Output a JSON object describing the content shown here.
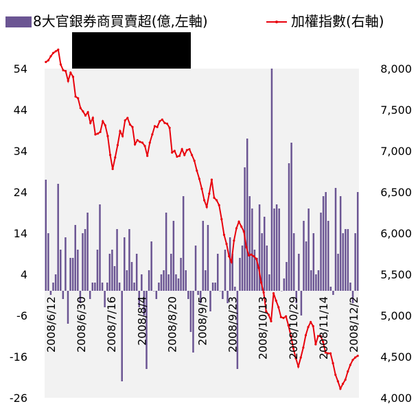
{
  "chart_data": {
    "type": "bar+line",
    "legend": [
      {
        "label": "8大官銀券商買賣超(億,左軸)",
        "kind": "bar",
        "color": "#6b5593"
      },
      {
        "label": "加權指數(右軸)",
        "kind": "line",
        "color": "#e8000b"
      }
    ],
    "left_axis": {
      "ticks": [
        "54",
        "44",
        "34",
        "24",
        "14",
        "4",
        "-6",
        "-16",
        "-26"
      ],
      "ylim": [
        -26,
        54
      ]
    },
    "right_axis": {
      "ticks": [
        "8,000",
        "7,500",
        "7,000",
        "6,500",
        "6,000",
        "5,500",
        "5,000",
        "4,500",
        "4,000"
      ],
      "ylim": [
        4000,
        8000
      ]
    },
    "x_labels": [
      "2008/6/12",
      "2008/6/30",
      "2008/7/16",
      "2008/8/4",
      "2008/8/20",
      "2008/9/5",
      "2008/9/23",
      "2008/10/13",
      "2008/10/29",
      "2008/11/14",
      "2008/12/2"
    ],
    "bar_values": [
      27,
      14,
      -1,
      2,
      4,
      26,
      10,
      -2,
      13,
      -8,
      8,
      8,
      16,
      10,
      -3,
      14,
      15,
      19,
      -2,
      2,
      2,
      10,
      21,
      2,
      -4,
      2,
      9,
      10,
      6,
      15,
      2,
      -22,
      13,
      5,
      15,
      7,
      2,
      9,
      -4,
      4,
      -6,
      -19,
      5,
      12,
      0,
      -2,
      2,
      4,
      5,
      19,
      4,
      9,
      17,
      4,
      3,
      8,
      23,
      5,
      -2,
      -10,
      -15,
      11,
      -1,
      -3,
      17,
      5,
      16,
      -5,
      2,
      2,
      9,
      0,
      -2,
      10,
      -3,
      13,
      9,
      1,
      -19,
      8,
      11,
      30,
      37,
      23,
      20,
      10,
      8,
      21,
      14,
      18,
      11,
      4,
      54,
      20,
      21,
      20,
      0,
      3,
      7,
      31,
      36,
      14,
      -3,
      9,
      -6,
      17,
      12,
      20,
      5,
      14,
      4,
      5,
      19,
      23,
      24,
      17,
      1,
      -1,
      25,
      9,
      23,
      14,
      15,
      15,
      2,
      -3,
      14,
      24
    ],
    "index_values": [
      8080,
      8100,
      8150,
      8190,
      8210,
      8230,
      8050,
      7980,
      7970,
      7850,
      7950,
      7900,
      7660,
      7640,
      7520,
      7480,
      7430,
      7470,
      7340,
      7400,
      7200,
      7210,
      7230,
      7360,
      7310,
      7180,
      6950,
      6780,
      6920,
      7070,
      7240,
      7180,
      7370,
      7400,
      7320,
      7290,
      7080,
      7130,
      7110,
      7100,
      7060,
      6940,
      7100,
      7200,
      7300,
      7290,
      7360,
      7380,
      7340,
      7330,
      7280,
      6980,
      7000,
      6930,
      6940,
      7020,
      6950,
      7010,
      7020,
      6950,
      6880,
      6760,
      6660,
      6540,
      6400,
      6320,
      6480,
      6650,
      6430,
      6400,
      6340,
      6170,
      5980,
      5870,
      5720,
      5650,
      5910,
      6060,
      6140,
      6080,
      6020,
      5830,
      5730,
      5740,
      5720,
      5690,
      5580,
      5400,
      5280,
      5050,
      5010,
      4930,
      5270,
      5180,
      5100,
      4980,
      4970,
      4990,
      4880,
      4750,
      4600,
      4480,
      4380,
      4490,
      4610,
      4760,
      4860,
      4920,
      4870,
      4650,
      4750,
      4750,
      4680,
      4550,
      4540,
      4540,
      4420,
      4280,
      4200,
      4110,
      4170,
      4220,
      4320,
      4400,
      4460,
      4490,
      4510
    ]
  }
}
